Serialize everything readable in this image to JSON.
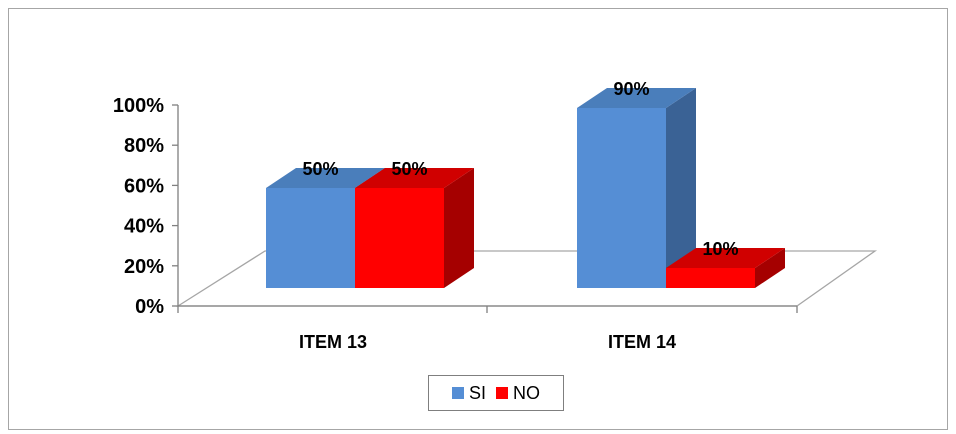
{
  "chart_data": {
    "type": "bar",
    "categories": [
      "ITEM 13",
      "ITEM 14"
    ],
    "series": [
      {
        "name": "SI",
        "values": [
          50,
          90
        ],
        "labels": [
          "50%",
          "90%"
        ],
        "color": "#558ED5",
        "side_color": "#3A6295",
        "top_color": "#4A7EBB"
      },
      {
        "name": "NO",
        "values": [
          50,
          10
        ],
        "labels": [
          "50%",
          "10%"
        ],
        "color": "#FF0000",
        "side_color": "#A50000",
        "top_color": "#D00000"
      }
    ],
    "y_ticks": [
      "0%",
      "20%",
      "40%",
      "60%",
      "80%",
      "100%"
    ],
    "ylim": [
      0,
      100
    ],
    "legend_position": "bottom",
    "grid": false,
    "three_d": true
  }
}
